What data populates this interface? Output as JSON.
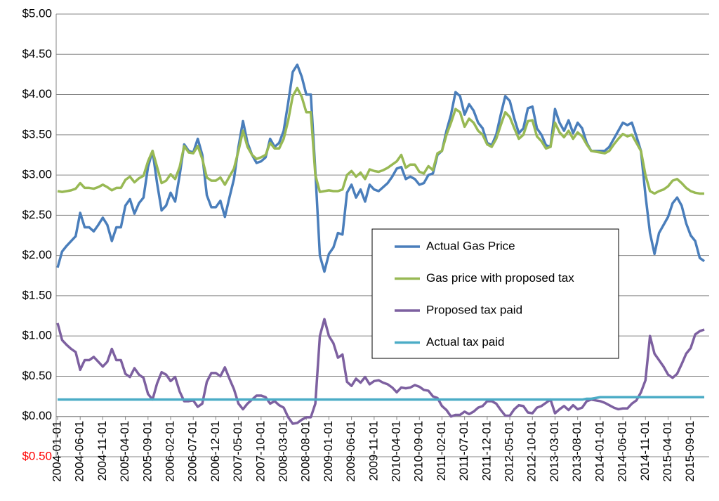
{
  "chart_data": {
    "type": "line",
    "categories": [
      "2004-01-01",
      null,
      null,
      null,
      null,
      "2004-06-01",
      null,
      null,
      null,
      null,
      "2004-11-01",
      null,
      null,
      null,
      null,
      "2005-04-01",
      null,
      null,
      null,
      null,
      "2005-09-01",
      null,
      null,
      null,
      null,
      "2006-02-01",
      null,
      null,
      null,
      null,
      "2006-07-01",
      null,
      null,
      null,
      null,
      "2006-12-01",
      null,
      null,
      null,
      null,
      "2007-05-01",
      null,
      null,
      null,
      null,
      "2007-10-01",
      null,
      null,
      null,
      null,
      "2008-03-01",
      null,
      null,
      null,
      null,
      "2008-08-01",
      null,
      null,
      null,
      null,
      "2009-01-01",
      null,
      null,
      null,
      null,
      "2009-06-01",
      null,
      null,
      null,
      null,
      "2009-11-01",
      null,
      null,
      null,
      null,
      "2010-04-01",
      null,
      null,
      null,
      null,
      "2010-09-01",
      null,
      null,
      null,
      null,
      "2011-02-01",
      null,
      null,
      null,
      null,
      "2011-07-01",
      null,
      null,
      null,
      null,
      "2011-12-01",
      null,
      null,
      null,
      null,
      "2012-05-01",
      null,
      null,
      null,
      null,
      "2012-10-01",
      null,
      null,
      null,
      null,
      "2013-03-01",
      null,
      null,
      null,
      null,
      "2013-08-01",
      null,
      null,
      null,
      null,
      "2014-01-01",
      null,
      null,
      null,
      null,
      "2014-06-01",
      null,
      null,
      null,
      null,
      "2014-11-01",
      null,
      null,
      null,
      null,
      "2015-04-01",
      null,
      null,
      null,
      null,
      "2015-09-01",
      null,
      null,
      null
    ],
    "series": [
      {
        "name": "Actual Gas Price",
        "color": "#4a7ebb",
        "values": [
          1.85,
          2.05,
          2.12,
          2.18,
          2.24,
          2.53,
          2.35,
          2.35,
          2.3,
          2.38,
          2.47,
          2.38,
          2.18,
          2.35,
          2.35,
          2.62,
          2.7,
          2.52,
          2.65,
          2.72,
          3.1,
          3.3,
          2.9,
          2.56,
          2.62,
          2.78,
          2.67,
          3.0,
          3.38,
          3.3,
          3.28,
          3.45,
          3.25,
          2.75,
          2.6,
          2.6,
          2.68,
          2.48,
          2.72,
          2.95,
          3.35,
          3.67,
          3.4,
          3.25,
          3.15,
          3.17,
          3.22,
          3.45,
          3.35,
          3.4,
          3.55,
          3.9,
          4.28,
          4.37,
          4.22,
          4.0,
          4.0,
          3.05,
          2.0,
          1.8,
          2.02,
          2.1,
          2.28,
          2.26,
          2.78,
          2.88,
          2.72,
          2.82,
          2.67,
          2.88,
          2.82,
          2.8,
          2.85,
          2.9,
          2.98,
          3.08,
          3.1,
          2.95,
          2.98,
          2.95,
          2.88,
          2.9,
          3.0,
          3.02,
          3.25,
          3.3,
          3.55,
          3.75,
          4.03,
          3.98,
          3.75,
          3.88,
          3.8,
          3.65,
          3.58,
          3.4,
          3.37,
          3.5,
          3.75,
          3.98,
          3.92,
          3.7,
          3.52,
          3.58,
          3.83,
          3.85,
          3.58,
          3.5,
          3.37,
          3.35,
          3.82,
          3.65,
          3.55,
          3.68,
          3.52,
          3.65,
          3.58,
          3.4,
          3.3,
          3.3,
          3.3,
          3.3,
          3.35,
          3.45,
          3.55,
          3.65,
          3.62,
          3.65,
          3.48,
          3.3,
          2.75,
          2.28,
          2.02,
          2.28,
          2.38,
          2.48,
          2.65,
          2.72,
          2.62,
          2.4,
          2.25,
          2.18,
          1.97,
          1.93
        ]
      },
      {
        "name": "Gas price with proposed tax",
        "color": "#98b954",
        "values": [
          2.8,
          2.79,
          2.8,
          2.81,
          2.83,
          2.9,
          2.84,
          2.84,
          2.83,
          2.85,
          2.88,
          2.85,
          2.81,
          2.84,
          2.84,
          2.94,
          2.98,
          2.91,
          2.96,
          2.99,
          3.17,
          3.3,
          3.1,
          2.9,
          2.93,
          3.01,
          2.95,
          3.1,
          3.36,
          3.28,
          3.27,
          3.36,
          3.2,
          2.97,
          2.93,
          2.93,
          2.97,
          2.88,
          2.98,
          3.08,
          3.3,
          3.55,
          3.35,
          3.25,
          3.2,
          3.22,
          3.25,
          3.4,
          3.33,
          3.33,
          3.45,
          3.68,
          3.98,
          4.08,
          3.97,
          3.78,
          3.78,
          3.0,
          2.79,
          2.8,
          2.81,
          2.8,
          2.8,
          2.82,
          3.0,
          3.05,
          2.98,
          3.03,
          2.95,
          3.07,
          3.05,
          3.04,
          3.06,
          3.09,
          3.13,
          3.17,
          3.25,
          3.09,
          3.13,
          3.13,
          3.04,
          3.02,
          3.11,
          3.06,
          3.27,
          3.3,
          3.5,
          3.65,
          3.82,
          3.78,
          3.6,
          3.7,
          3.65,
          3.55,
          3.5,
          3.38,
          3.35,
          3.45,
          3.62,
          3.78,
          3.72,
          3.58,
          3.45,
          3.5,
          3.67,
          3.68,
          3.48,
          3.42,
          3.33,
          3.35,
          3.65,
          3.53,
          3.47,
          3.55,
          3.45,
          3.53,
          3.48,
          3.38,
          3.3,
          3.29,
          3.28,
          3.27,
          3.3,
          3.38,
          3.45,
          3.51,
          3.48,
          3.5,
          3.4,
          3.3,
          3.0,
          2.8,
          2.77,
          2.8,
          2.82,
          2.86,
          2.93,
          2.95,
          2.9,
          2.84,
          2.8,
          2.78,
          2.77,
          2.77
        ]
      },
      {
        "name": "Proposed tax paid",
        "color": "#7d60a0",
        "values": [
          1.16,
          0.95,
          0.89,
          0.84,
          0.8,
          0.58,
          0.7,
          0.7,
          0.74,
          0.68,
          0.62,
          0.68,
          0.84,
          0.7,
          0.7,
          0.53,
          0.49,
          0.6,
          0.52,
          0.48,
          0.28,
          0.21,
          0.41,
          0.55,
          0.52,
          0.44,
          0.49,
          0.31,
          0.19,
          0.19,
          0.2,
          0.12,
          0.16,
          0.43,
          0.54,
          0.54,
          0.5,
          0.61,
          0.47,
          0.34,
          0.16,
          0.09,
          0.16,
          0.21,
          0.26,
          0.26,
          0.24,
          0.16,
          0.19,
          0.14,
          0.11,
          -0.01,
          -0.09,
          -0.08,
          -0.04,
          -0.01,
          -0.01,
          0.16,
          1.0,
          1.21,
          1.0,
          0.91,
          0.73,
          0.77,
          0.43,
          0.38,
          0.47,
          0.42,
          0.49,
          0.4,
          0.44,
          0.45,
          0.42,
          0.4,
          0.36,
          0.3,
          0.36,
          0.35,
          0.36,
          0.39,
          0.37,
          0.33,
          0.32,
          0.25,
          0.23,
          0.13,
          0.08,
          0.0,
          0.02,
          0.02,
          0.06,
          0.03,
          0.06,
          0.11,
          0.13,
          0.19,
          0.19,
          0.16,
          0.08,
          0.01,
          0.01,
          0.09,
          0.14,
          0.13,
          0.05,
          0.04,
          0.11,
          0.13,
          0.17,
          0.21,
          0.04,
          0.09,
          0.13,
          0.08,
          0.14,
          0.09,
          0.11,
          0.19,
          0.21,
          0.2,
          0.19,
          0.17,
          0.14,
          0.11,
          0.09,
          0.1,
          0.1,
          0.16,
          0.2,
          0.3,
          0.45,
          1.0,
          0.78,
          0.7,
          0.62,
          0.52,
          0.48,
          0.53,
          0.65,
          0.78,
          0.85,
          1.02,
          1.06,
          1.08
        ]
      },
      {
        "name": "Actual tax paid",
        "color": "#4bacc6",
        "values": [
          0.21,
          0.21,
          0.21,
          0.21,
          0.21,
          0.21,
          0.21,
          0.21,
          0.21,
          0.21,
          0.21,
          0.21,
          0.21,
          0.21,
          0.21,
          0.21,
          0.21,
          0.21,
          0.21,
          0.21,
          0.21,
          0.21,
          0.21,
          0.21,
          0.21,
          0.21,
          0.21,
          0.21,
          0.21,
          0.21,
          0.21,
          0.21,
          0.21,
          0.21,
          0.21,
          0.21,
          0.21,
          0.21,
          0.21,
          0.21,
          0.21,
          0.21,
          0.21,
          0.21,
          0.21,
          0.21,
          0.21,
          0.21,
          0.21,
          0.21,
          0.21,
          0.21,
          0.21,
          0.21,
          0.21,
          0.21,
          0.21,
          0.21,
          0.21,
          0.21,
          0.21,
          0.21,
          0.21,
          0.21,
          0.21,
          0.21,
          0.21,
          0.21,
          0.21,
          0.21,
          0.21,
          0.21,
          0.21,
          0.21,
          0.21,
          0.21,
          0.21,
          0.21,
          0.21,
          0.21,
          0.21,
          0.21,
          0.21,
          0.21,
          0.21,
          0.21,
          0.21,
          0.21,
          0.21,
          0.21,
          0.21,
          0.21,
          0.21,
          0.21,
          0.21,
          0.21,
          0.21,
          0.21,
          0.21,
          0.21,
          0.21,
          0.21,
          0.21,
          0.21,
          0.21,
          0.21,
          0.21,
          0.21,
          0.21,
          0.21,
          0.21,
          0.21,
          0.21,
          0.21,
          0.21,
          0.21,
          0.21,
          0.22,
          0.22,
          0.23,
          0.24,
          0.24,
          0.24,
          0.24,
          0.24,
          0.24,
          0.24,
          0.24,
          0.24,
          0.24,
          0.24,
          0.24,
          0.24,
          0.24,
          0.24,
          0.24,
          0.24,
          0.24,
          0.24,
          0.24,
          0.24,
          0.24,
          0.24,
          0.24
        ]
      }
    ],
    "ylim": [
      -0.5,
      5
    ],
    "yticks": [
      {
        "value": -0.5,
        "label": "$0.50",
        "color": "#ff0000"
      },
      {
        "value": 0,
        "label": "$0.00"
      },
      {
        "value": 0.5,
        "label": "$0.50"
      },
      {
        "value": 1,
        "label": "$1.00"
      },
      {
        "value": 1.5,
        "label": "$1.50"
      },
      {
        "value": 2,
        "label": "$2.00"
      },
      {
        "value": 2.5,
        "label": "$2.50"
      },
      {
        "value": 3,
        "label": "$3.00"
      },
      {
        "value": 3.5,
        "label": "$3.50"
      },
      {
        "value": 4,
        "label": "$4.00"
      },
      {
        "value": 4.5,
        "label": "$4.50"
      },
      {
        "value": 5,
        "label": "$5.00"
      }
    ],
    "grid": true
  }
}
